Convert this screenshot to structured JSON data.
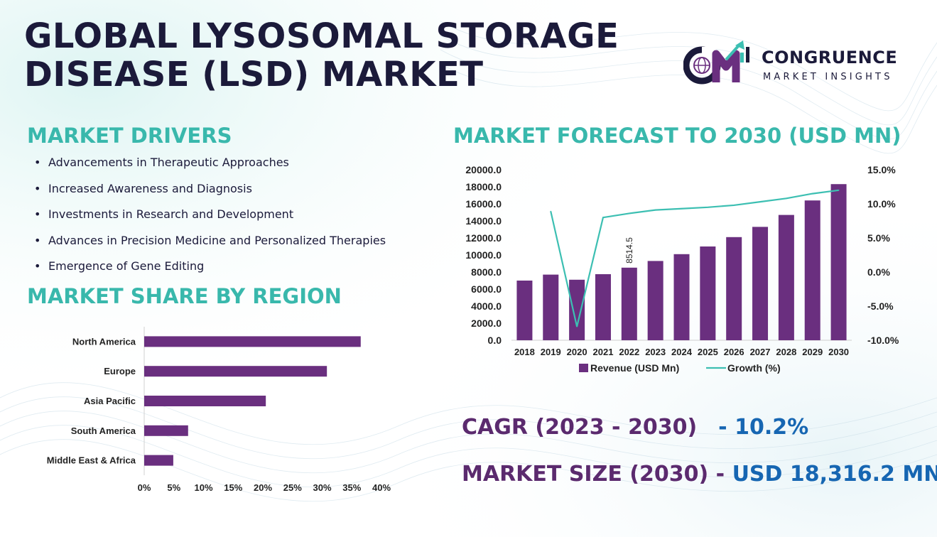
{
  "title": {
    "line1": "GLOBAL LYSOSOMAL STORAGE",
    "line2": "DISEASE (LSD) MARKET"
  },
  "logo": {
    "name": "CONGRUENCE",
    "tagline": "MARKET INSIGHTS",
    "icon": "cm-globe-growth-icon"
  },
  "drivers": {
    "heading": "MARKET DRIVERS",
    "items": [
      "Advancements in Therapeutic Approaches",
      "Increased Awareness and Diagnosis",
      "Investments in Research and Development",
      "Advances in Precision Medicine and Personalized Therapies",
      "Emergence of Gene Editing"
    ]
  },
  "region": {
    "heading": "MARKET SHARE BY REGION"
  },
  "forecast": {
    "heading": "MARKET FORECAST TO 2030 (USD MN)"
  },
  "stats": {
    "cagr_label": "CAGR (2023 - 2030)",
    "cagr_value": "- 10.2%",
    "size_label": "MARKET SIZE (2030)",
    "size_dash": "-",
    "size_value": "USD 18,316.2 MN"
  },
  "colors": {
    "bar": "#6a2f7f",
    "line": "#3cbfb2",
    "heading_teal": "#39b8ac",
    "stat_purple": "#5b2a6e",
    "stat_blue": "#1666b2",
    "title_dark": "#1b1a3a"
  },
  "chart_data": [
    {
      "type": "bar",
      "orientation": "horizontal",
      "categories": [
        "North America",
        "Europe",
        "Asia Pacific",
        "South America",
        "Middle East & Africa"
      ],
      "values": [
        36.5,
        30.8,
        20.5,
        7.4,
        4.9
      ],
      "xlim": [
        0,
        40
      ],
      "x_ticks": [
        "0%",
        "5%",
        "10%",
        "15%",
        "20%",
        "25%",
        "30%",
        "35%",
        "40%"
      ],
      "grid": false
    },
    {
      "type": "bar",
      "categories": [
        "2018",
        "2019",
        "2020",
        "2021",
        "2022",
        "2023",
        "2024",
        "2025",
        "2026",
        "2027",
        "2028",
        "2029",
        "2030"
      ],
      "series": [
        {
          "name": "Revenue (USD Mn)",
          "axis": "left",
          "kind": "bar",
          "values": [
            7000,
            7700,
            7100,
            7750,
            8514.5,
            9300,
            10100,
            11000,
            12100,
            13300,
            14700,
            16400,
            18316.2
          ]
        },
        {
          "name": "Growth (%)",
          "axis": "right",
          "kind": "line",
          "values": [
            null,
            8.9,
            -8.0,
            8.0,
            8.6,
            9.1,
            9.3,
            9.5,
            9.8,
            10.3,
            10.8,
            11.5,
            12.0
          ]
        }
      ],
      "data_labels": [
        {
          "index": 4,
          "text": "8514.5"
        }
      ],
      "ylim_left": [
        0,
        20000
      ],
      "y_ticks_left": [
        "0.0",
        "2000.0",
        "4000.0",
        "6000.0",
        "8000.0",
        "10000.0",
        "12000.0",
        "14000.0",
        "16000.0",
        "18000.0",
        "20000.0"
      ],
      "ylim_right": [
        -10,
        15
      ],
      "y_ticks_right": [
        "-10.0%",
        "-5.0%",
        "0.0%",
        "5.0%",
        "10.0%",
        "15.0%"
      ],
      "legend": "bottom",
      "grid": false
    }
  ]
}
